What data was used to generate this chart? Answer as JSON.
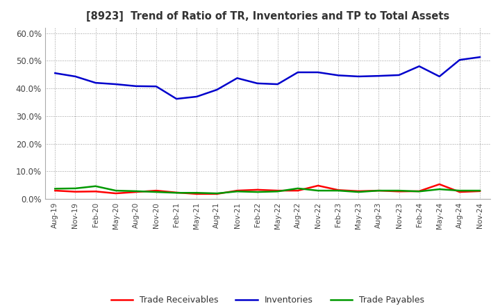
{
  "title": "[8923]  Trend of Ratio of TR, Inventories and TP to Total Assets",
  "x_labels": [
    "Aug-19",
    "Nov-19",
    "Feb-20",
    "May-20",
    "Aug-20",
    "Nov-20",
    "Feb-21",
    "May-21",
    "Aug-21",
    "Nov-21",
    "Feb-22",
    "May-22",
    "Aug-22",
    "Nov-22",
    "Feb-23",
    "May-23",
    "Aug-23",
    "Nov-23",
    "Feb-24",
    "May-24",
    "Aug-24",
    "Nov-24"
  ],
  "trade_receivables": [
    0.03,
    0.026,
    0.027,
    0.02,
    0.025,
    0.03,
    0.023,
    0.018,
    0.018,
    0.03,
    0.033,
    0.03,
    0.03,
    0.048,
    0.032,
    0.028,
    0.03,
    0.027,
    0.028,
    0.053,
    0.025,
    0.028
  ],
  "inventories": [
    0.455,
    0.443,
    0.42,
    0.415,
    0.408,
    0.407,
    0.362,
    0.37,
    0.395,
    0.437,
    0.418,
    0.415,
    0.458,
    0.458,
    0.447,
    0.443,
    0.445,
    0.448,
    0.48,
    0.443,
    0.503,
    0.513
  ],
  "trade_payables": [
    0.037,
    0.038,
    0.046,
    0.03,
    0.028,
    0.025,
    0.022,
    0.022,
    0.02,
    0.027,
    0.025,
    0.027,
    0.038,
    0.03,
    0.03,
    0.025,
    0.03,
    0.03,
    0.027,
    0.035,
    0.03,
    0.03
  ],
  "ylim": [
    0.0,
    0.62
  ],
  "yticks": [
    0.0,
    0.1,
    0.2,
    0.3,
    0.4,
    0.5,
    0.6
  ],
  "colors": {
    "trade_receivables": "#ff0000",
    "inventories": "#0000cc",
    "trade_payables": "#009900"
  },
  "legend_labels": [
    "Trade Receivables",
    "Inventories",
    "Trade Payables"
  ],
  "background_color": "#ffffff",
  "grid_color": "#999999"
}
